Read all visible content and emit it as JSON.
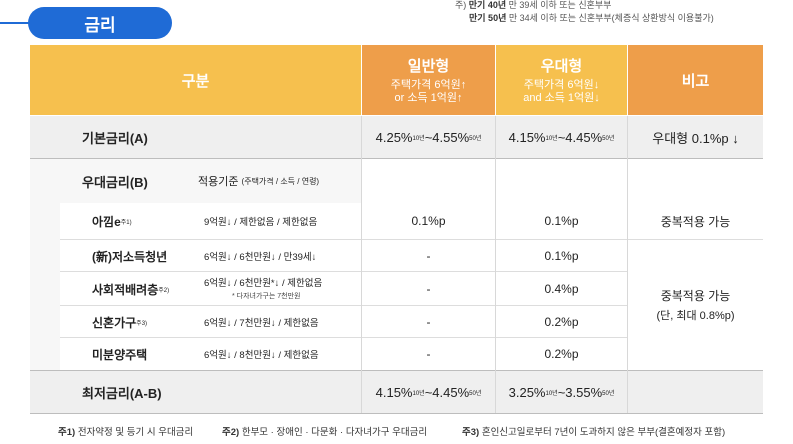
{
  "notes": {
    "line1_prefix": "주) ",
    "line1_bold": "만기 40년",
    "line1_rest": " 만 39세 이하 또는 신혼부부",
    "line2_bold": "만기 50년",
    "line2_rest": " 만 34세 이하 또는 신혼부부(체증식 상환방식 이용불가)"
  },
  "tab": {
    "label": "금리"
  },
  "header": {
    "category": "구분",
    "general": {
      "title": "일반형",
      "line1": "주택가격 6억원↑",
      "line2": "or 소득 1억원↑"
    },
    "preferential": {
      "title": "우대형",
      "line1": "주택가격 6억원↓",
      "line2": "and 소득 1억원↓"
    },
    "remarks": "비고"
  },
  "base_rate": {
    "label": "기본금리(A)",
    "general": {
      "a": "4.25%",
      "a_sup": "10년",
      "sep": " ~ ",
      "b": "4.55%",
      "b_sup": "50년"
    },
    "preferential": {
      "a": "4.15%",
      "a_sup": "10년",
      "sep": " ~ ",
      "b": "4.45%",
      "b_sup": "50년"
    },
    "remark": "우대형 0.1%p ↓"
  },
  "pref_rate": {
    "label": "우대금리(B)",
    "criteria_label": "적용기준",
    "criteria_sub": "(주택가격 / 소득 / 연령)",
    "rows": [
      {
        "name": "아낌e",
        "sup": "주1)",
        "criteria": "9억원↓ / 제한없음 / 제한없음",
        "general": "0.1%p",
        "preferential": "0.1%p"
      },
      {
        "name": "(新)저소득청년",
        "sup": "",
        "criteria": "6억원↓ / 6천만원↓ / 만39세↓",
        "general": "-",
        "preferential": "0.1%p"
      },
      {
        "name": "사회적배려층",
        "sup": "주2)",
        "criteria": "6억원↓ / 6천만원*↓ / 제한없음",
        "criteria_note": "* 다자녀가구는 7천만원",
        "general": "-",
        "preferential": "0.4%p"
      },
      {
        "name": "신혼가구",
        "sup": "주3)",
        "criteria": "6억원↓ / 7천만원↓ / 제한없음",
        "general": "-",
        "preferential": "0.2%p"
      },
      {
        "name": "미분양주택",
        "sup": "",
        "criteria": "6억원↓ / 8천만원↓ / 제한없음",
        "general": "-",
        "preferential": "0.2%p"
      }
    ],
    "remark1": "중복적용 가능",
    "remark2_line1": "중복적용 가능",
    "remark2_line2": "(단, 최대 0.8%p)"
  },
  "min_rate": {
    "label": "최저금리(A-B)",
    "general": {
      "a": "4.15%",
      "a_sup": "10년",
      "sep": " ~ ",
      "b": "4.45%",
      "b_sup": "50년"
    },
    "preferential": {
      "a": "3.25%",
      "a_sup": "10년",
      "sep": " ~ ",
      "b": "3.55%",
      "b_sup": "50년"
    }
  },
  "footnotes": {
    "n1_label": "주1)",
    "n1_text": " 전자약정 및 등기 시 우대금리",
    "n2_label": "주2)",
    "n2_text": " 한부모 · 장애인 · 다문화 · 다자녀가구 우대금리",
    "n3_label": "주3)",
    "n3_text": " 혼인신고일로부터 7년이 도과하지 않은 부부(결혼예정자 포함)"
  },
  "colors": {
    "tab_blue": "#1f6bd6",
    "header_yellow": "#f6c04e",
    "header_orange": "#ee9e4a",
    "row_gray": "#efefef",
    "row_light": "#f7f7f7"
  }
}
